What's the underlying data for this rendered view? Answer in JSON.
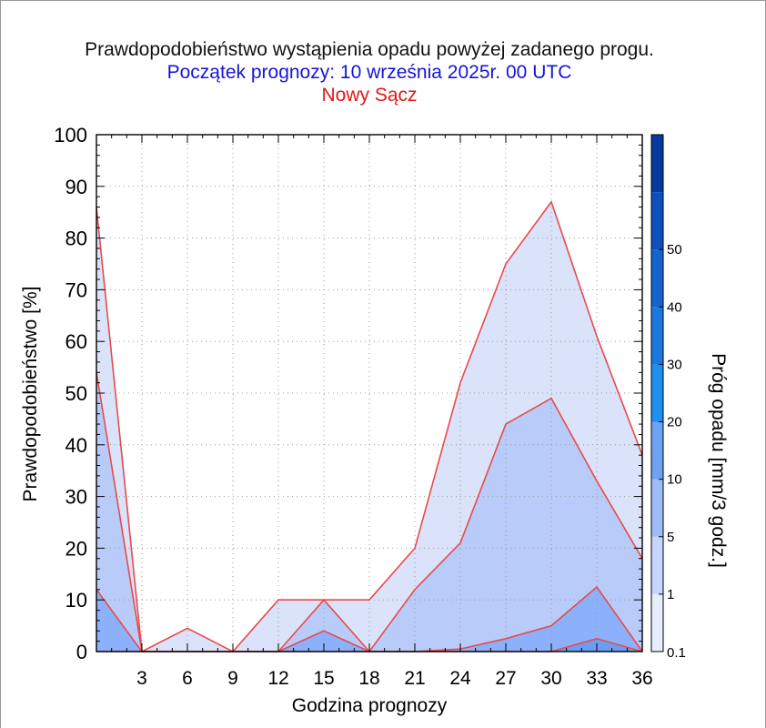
{
  "title": "Prawdopodobieństwo wystąpienia opadu powyżej zadanego progu.",
  "subtitle": "Początek prognozy: 10 września 2025r. 00 UTC",
  "location": "Nowy Sącz",
  "chart_data": {
    "type": "area",
    "title": "Prawdopodobieństwo wystąpienia opadu powyżej zadanego progu.",
    "xlabel": "Godzina prognozy",
    "ylabel": "Prawdopodobieństwo [%]",
    "xlim": [
      0,
      36
    ],
    "ylim": [
      0,
      100
    ],
    "x_ticks": [
      3,
      6,
      9,
      12,
      15,
      18,
      21,
      24,
      27,
      30,
      33,
      36
    ],
    "y_ticks": [
      0,
      10,
      20,
      30,
      40,
      50,
      60,
      70,
      80,
      90,
      100
    ],
    "grid": true,
    "x": [
      0,
      3,
      6,
      9,
      12,
      15,
      18,
      21,
      24,
      27,
      30,
      33,
      36
    ],
    "series": [
      {
        "threshold": 0.1,
        "color": "#dbe3fb",
        "values": [
          86,
          0,
          4.5,
          0,
          10,
          10,
          10,
          20,
          52,
          75,
          87,
          61,
          38
        ]
      },
      {
        "threshold": 1,
        "color": "#b9cbf9",
        "values": [
          54,
          0,
          0,
          0,
          0,
          10,
          0,
          12,
          21,
          44,
          49,
          33,
          18
        ]
      },
      {
        "threshold": 5,
        "color": "#8db0fa",
        "values": [
          12,
          0,
          0,
          0,
          0,
          4,
          0,
          0,
          0.5,
          2.5,
          5,
          12.5,
          0
        ]
      },
      {
        "threshold": 10,
        "color": "#6b9ef2",
        "values": [
          0,
          0,
          0,
          0,
          0,
          0,
          0,
          0,
          0,
          0,
          0,
          2.5,
          0
        ]
      }
    ],
    "line_color": "#e84a4a",
    "colorbar": {
      "label": "Próg opadu [mm/3 godz.]",
      "ticks": [
        "0.1",
        "1",
        "5",
        "10",
        "20",
        "30",
        "40",
        "50"
      ],
      "colors": [
        "#e7edff",
        "#c5d6ff",
        "#9ebdf8",
        "#6ea2f5",
        "#1e90f0",
        "#1a78e0",
        "#1463cf",
        "#0d4fbf",
        "#063a9e"
      ]
    }
  }
}
